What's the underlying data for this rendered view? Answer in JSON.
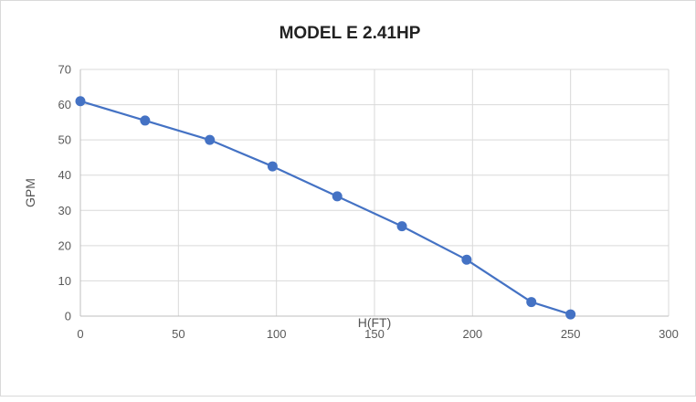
{
  "chart": {
    "title": "MODEL E 2.41HP",
    "xlabel": "H(FT)",
    "ylabel": "GPM"
  },
  "chart_data": {
    "type": "line",
    "title": "MODEL E 2.41HP",
    "xlabel": "H(FT)",
    "ylabel": "GPM",
    "x": [
      0,
      33,
      66,
      98,
      131,
      164,
      197,
      230,
      250
    ],
    "y": [
      61,
      55.5,
      50,
      42.5,
      34,
      25.5,
      16,
      4,
      0.5
    ],
    "xlim": [
      0,
      300
    ],
    "ylim": [
      0,
      70
    ],
    "x_ticks": [
      0,
      50,
      100,
      150,
      200,
      250,
      300
    ],
    "y_ticks": [
      0,
      10,
      20,
      30,
      40,
      50,
      60,
      70
    ],
    "grid": true,
    "legend": false,
    "line_color": "#4472C4",
    "marker": "circle"
  },
  "colors": {
    "grid": "#d9d9d9",
    "axis": "#bfbfbf",
    "tick_text": "#595959",
    "title_text": "#222222",
    "border": "#d9d9d9",
    "background": "#ffffff"
  }
}
